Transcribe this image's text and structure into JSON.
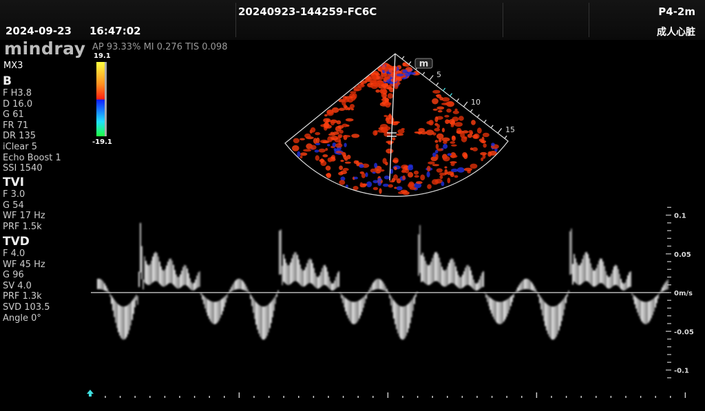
{
  "header": {
    "date": "2024-09-23",
    "time": "16:47:02",
    "study_id": "20240923-144259-FC6C",
    "probe": "P4-2m",
    "preset": "成人心脏"
  },
  "brand": {
    "logo": "mindray",
    "model": "MX3"
  },
  "acoustic": "AP 93.33%  MI 0.276 TIS 0.098",
  "colorbar": {
    "max": "19.1",
    "min": "-19.1",
    "colors": [
      "#ffff40",
      "#ff9020",
      "#ff2010",
      "#1020ff",
      "#20e0ff",
      "#20ff40"
    ]
  },
  "params": {
    "b": {
      "title": "B",
      "items": [
        "F H3.8",
        "D 16.0",
        "G 61",
        "FR 71",
        "DR 135",
        "iClear 5",
        "Echo Boost 1",
        "SSI 1540"
      ]
    },
    "tvi": {
      "title": "TVI",
      "items": [
        "F 3.0",
        "G 54",
        "WF 17 Hz",
        "PRF 1.5k"
      ]
    },
    "tvd": {
      "title": "TVD",
      "items": [
        "F 4.0",
        "WF 45 Hz",
        "G 96",
        "SV 4.0",
        "PRF 1.3k",
        "SVD 103.5",
        "Angle    0°"
      ]
    }
  },
  "sector": {
    "depth_labels": [
      "5",
      "10",
      "15"
    ],
    "m_mark": "m"
  },
  "doppler": {
    "scale_labels": [
      "0.1",
      "0.05",
      "0m/s",
      "-0.05",
      "-0.1"
    ],
    "scale_values": [
      0.1,
      0.05,
      0,
      -0.05,
      -0.1
    ],
    "accent": "#40e0e0"
  }
}
